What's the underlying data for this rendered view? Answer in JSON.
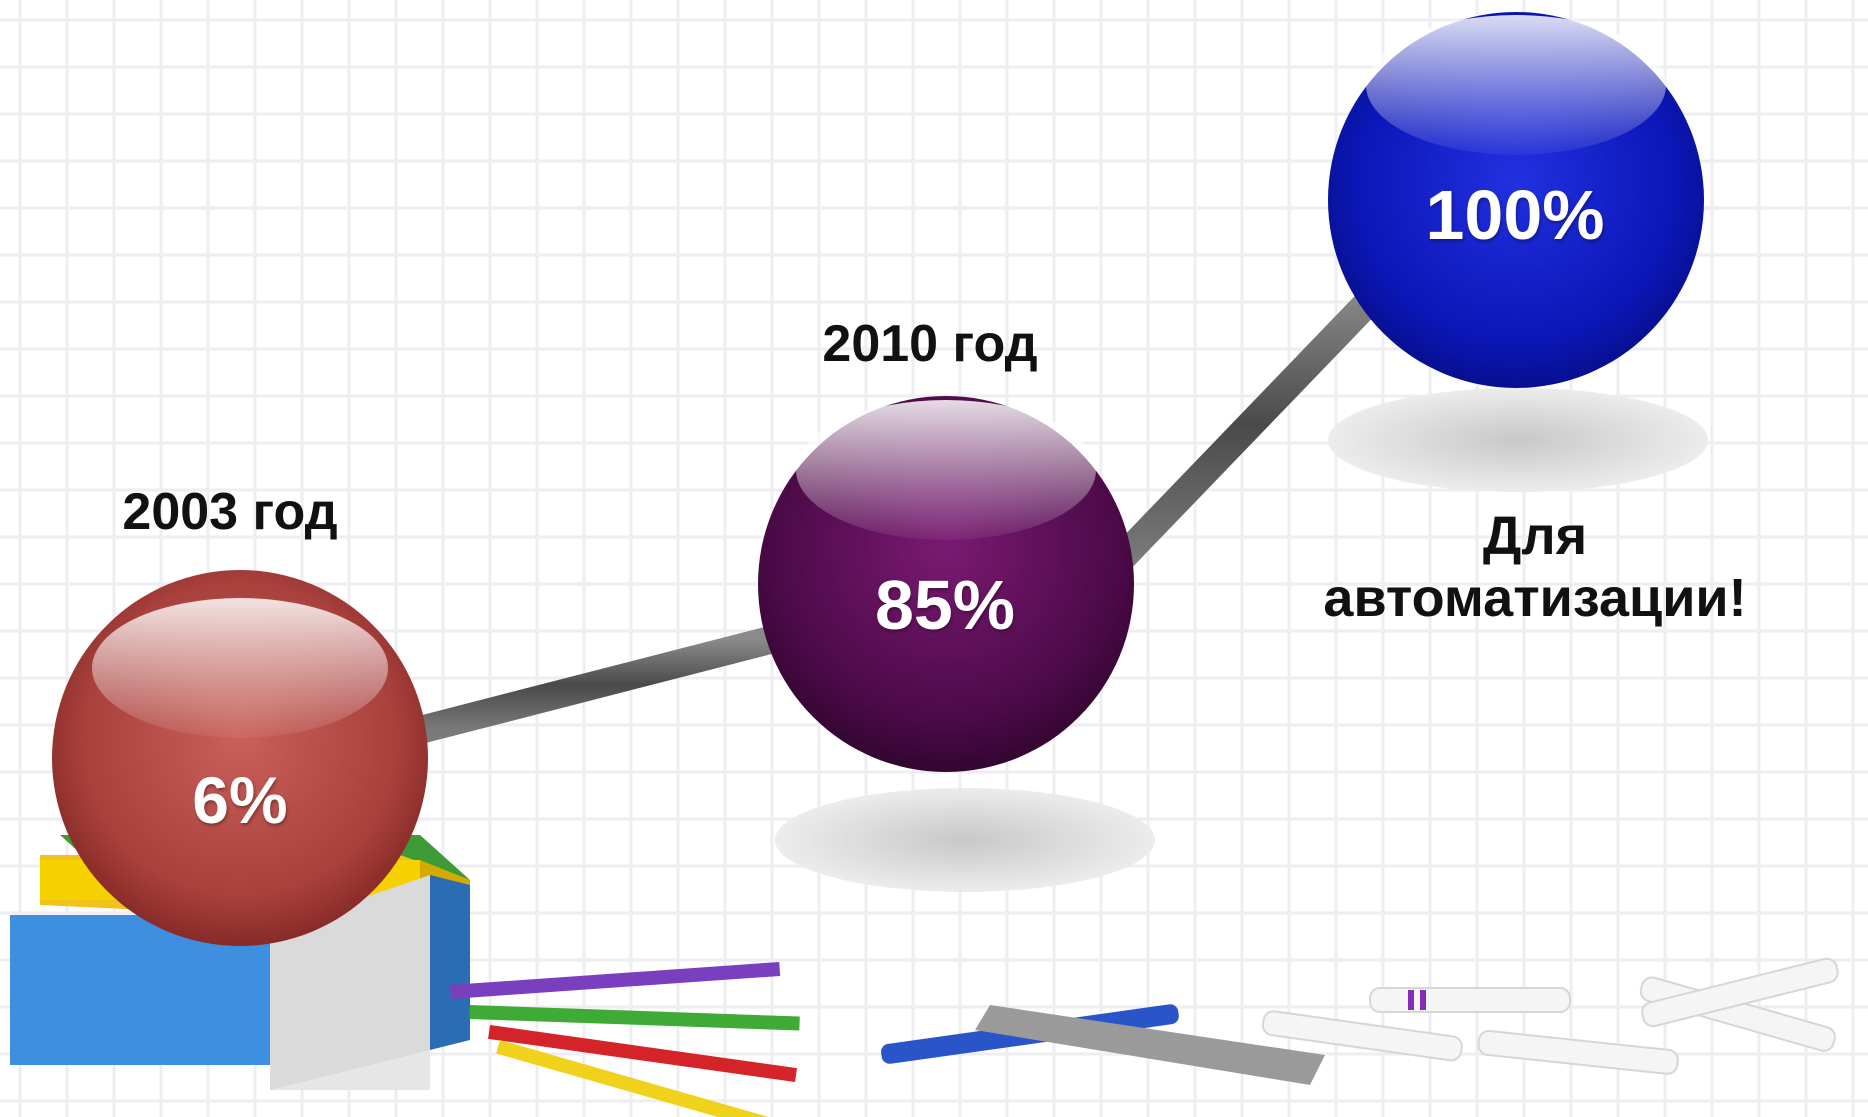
{
  "nodes": [
    {
      "year_label": "2003 год",
      "value_text": "6%",
      "value": 6,
      "color": "#a8403c"
    },
    {
      "year_label": "2010 год",
      "value_text": "85%",
      "value": 85,
      "color": "#5a0a55"
    },
    {
      "year_label": "",
      "value_text": "100%",
      "value": 100,
      "color": "#0c17b8"
    }
  ],
  "goal_label_line1": "Для",
  "goal_label_line2": "автоматизации!",
  "colors": {
    "grid_line": "#eeeef2",
    "connector": "#6a6a6a",
    "text_dark": "#111111",
    "text_light": "#ffffff"
  },
  "decor_icons": [
    "books-stack-icon",
    "colored-pencils-icon",
    "pen-icon",
    "ruler-icon",
    "markers-icon"
  ]
}
